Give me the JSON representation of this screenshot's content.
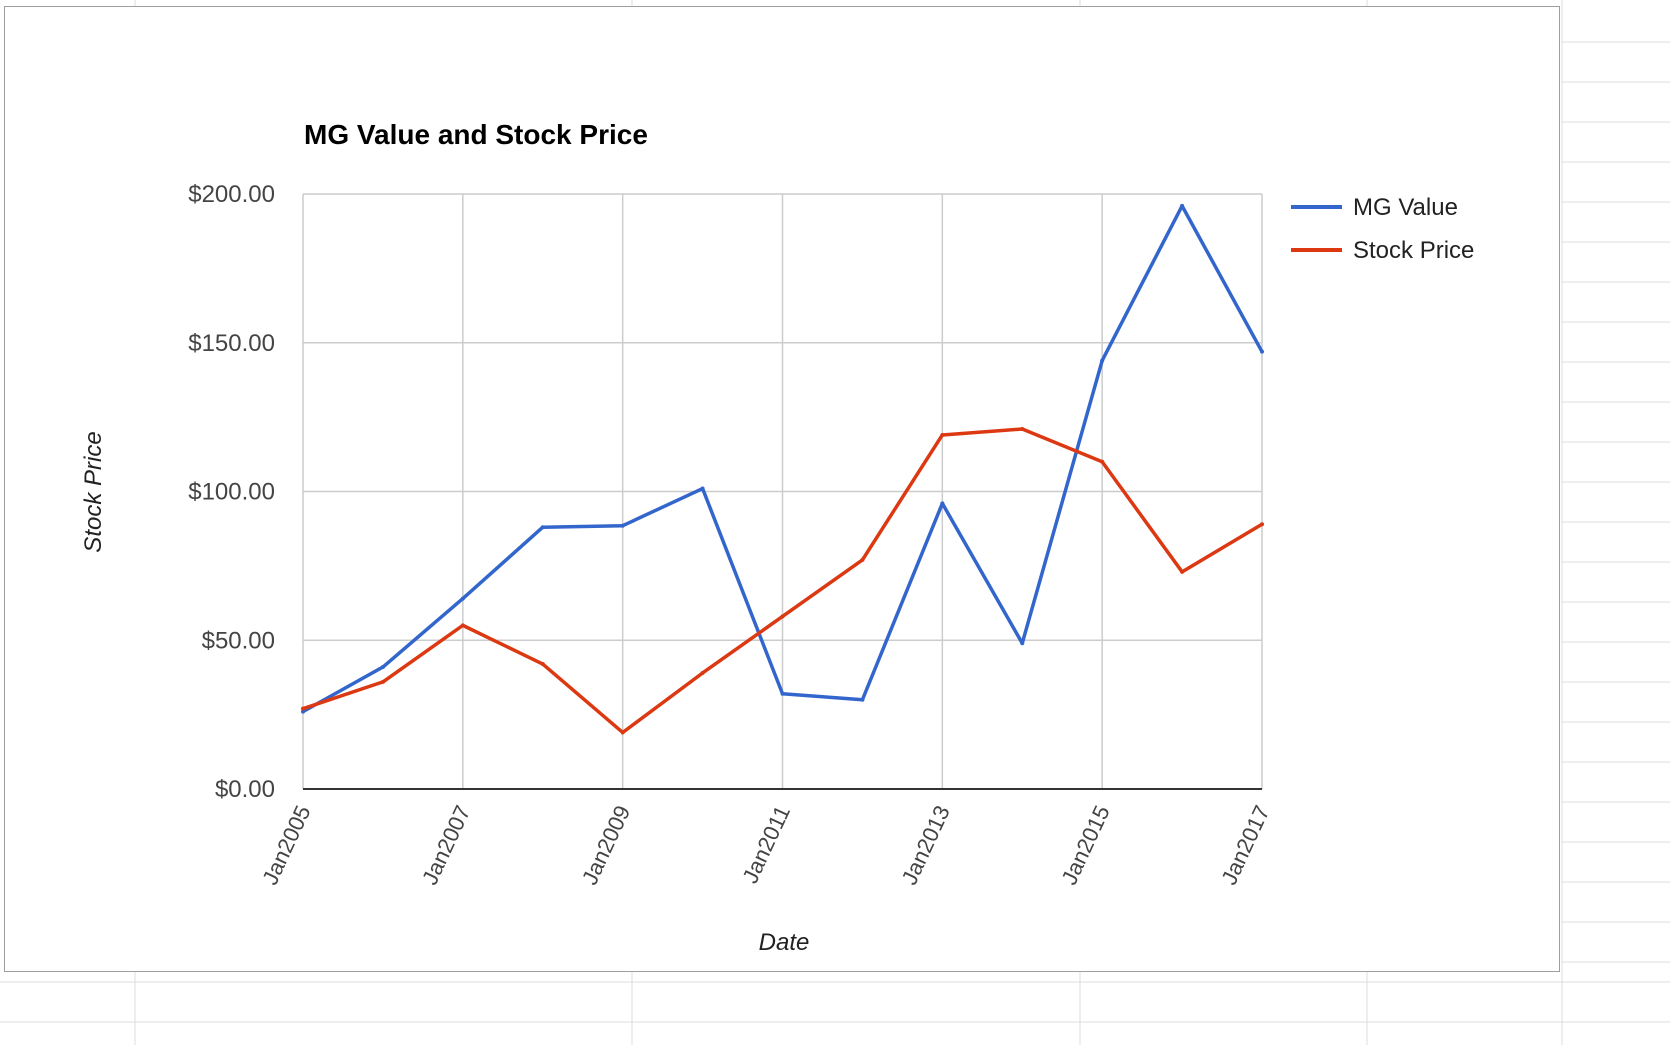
{
  "chart_data": {
    "type": "line",
    "title": "MG Value and Stock Price",
    "xlabel": "Date",
    "ylabel": "Stock Price",
    "x": [
      "Jan2005",
      "Jan2006",
      "Jan2007",
      "Jan2008",
      "Jan2009",
      "Jan2010",
      "Jan2011",
      "Jan2012",
      "Jan2013",
      "Jan2014",
      "Jan2015",
      "Jan2016",
      "Jan2017"
    ],
    "x_tick_labels": [
      "Jan2005",
      "Jan2007",
      "Jan2009",
      "Jan2011",
      "Jan2013",
      "Jan2015",
      "Jan2017"
    ],
    "y_tick_labels": [
      "$0.00",
      "$50.00",
      "$100.00",
      "$150.00",
      "$200.00"
    ],
    "y_ticks": [
      0,
      50,
      100,
      150,
      200
    ],
    "ylim": [
      0,
      200
    ],
    "grid": true,
    "legend_position": "right",
    "series": [
      {
        "name": "MG Value",
        "color": "#3366cc",
        "values": [
          26,
          41,
          64,
          88,
          88.5,
          101,
          32,
          30,
          96,
          49,
          144,
          196,
          147
        ]
      },
      {
        "name": "Stock Price",
        "color": "#dc3912",
        "values": [
          27,
          36,
          55,
          42,
          19,
          39,
          58,
          77,
          119,
          121,
          110,
          73,
          89
        ]
      }
    ]
  }
}
